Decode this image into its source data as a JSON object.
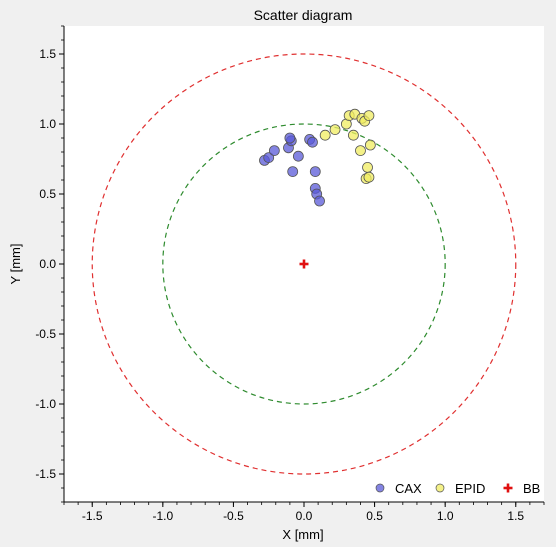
{
  "chart_data": {
    "type": "scatter",
    "title": "Scatter diagram",
    "xlabel": "X [mm]",
    "ylabel": "Y [mm]",
    "xlim": [
      -1.7,
      1.7
    ],
    "ylim": [
      -1.7,
      1.7
    ],
    "xticks": [
      "-1.5",
      "-1.0",
      "-0.5",
      "0.0",
      "0.5",
      "1.0",
      "1.5"
    ],
    "yticks": [
      "-1.5",
      "-1.0",
      "-0.5",
      "0.0",
      "0.5",
      "1.0",
      "1.5"
    ],
    "grid": false,
    "legend_position": "bottom-right",
    "circles": [
      {
        "name": "tolerance-inner",
        "radius": 1.0,
        "color": "#2e8b2e",
        "dashed": true
      },
      {
        "name": "tolerance-outer",
        "radius": 1.5,
        "color": "#e03030",
        "dashed": true
      }
    ],
    "series": [
      {
        "name": "CAX",
        "marker": "circle",
        "color": "#5a5ad8",
        "x": [
          -0.28,
          -0.25,
          -0.21,
          -0.11,
          -0.09,
          -0.1,
          -0.08,
          -0.04,
          0.04,
          0.06,
          0.08,
          0.08,
          0.09,
          0.11
        ],
        "y": [
          0.74,
          0.76,
          0.81,
          0.83,
          0.88,
          0.9,
          0.66,
          0.77,
          0.89,
          0.87,
          0.66,
          0.54,
          0.5,
          0.45
        ]
      },
      {
        "name": "EPID",
        "marker": "circle",
        "color": "#f0ec60",
        "x": [
          0.15,
          0.22,
          0.3,
          0.32,
          0.36,
          0.41,
          0.43,
          0.46,
          0.35,
          0.4,
          0.47,
          0.45,
          0.44,
          0.46
        ],
        "y": [
          0.92,
          0.96,
          1.0,
          1.06,
          1.07,
          1.04,
          1.02,
          1.06,
          0.92,
          0.81,
          0.85,
          0.69,
          0.61,
          0.62
        ]
      },
      {
        "name": "BB",
        "marker": "plus",
        "color": "#e01010",
        "x": [
          0.0
        ],
        "y": [
          0.0
        ]
      }
    ]
  }
}
